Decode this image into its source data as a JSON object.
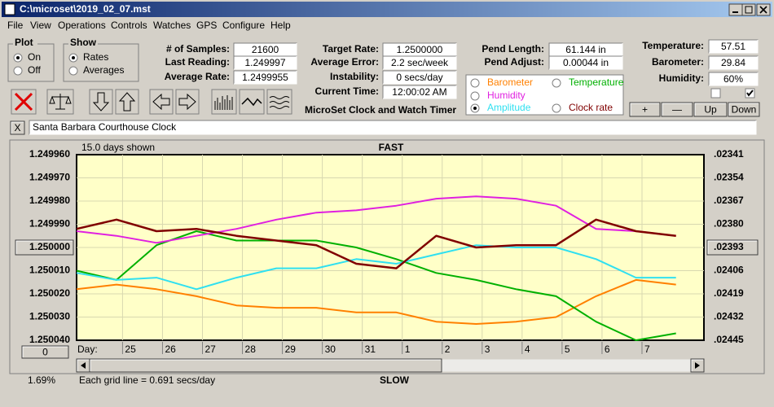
{
  "window": {
    "title": "C:\\microset\\2019_02_07.mst"
  },
  "menu": [
    "File",
    "View",
    "Operations",
    "Controls",
    "Watches",
    "GPS",
    "Configure",
    "Help"
  ],
  "plot_group": {
    "title": "Plot",
    "options": [
      "On",
      "Off"
    ],
    "selected": 0
  },
  "show_group": {
    "title": "Show",
    "options": [
      "Rates",
      "Averages"
    ],
    "selected": 0
  },
  "stats": [
    {
      "label": "# of Samples:",
      "value": "21600"
    },
    {
      "label": "Last Reading:",
      "value": "1.249997"
    },
    {
      "label": "Average Rate:",
      "value": "1.2499955"
    }
  ],
  "timing": [
    {
      "label": "Target Rate:",
      "value": "1.2500000"
    },
    {
      "label": "Average Error:",
      "value": "2.2 sec/week"
    },
    {
      "label": "Instability:",
      "value": "0 secs/day"
    },
    {
      "label": "Current Time:",
      "value": "12:00:02 AM"
    }
  ],
  "pendulum": [
    {
      "label": "Pend Length:",
      "value": "61.144 in"
    },
    {
      "label": "Pend Adjust:",
      "value": "0.00044 in"
    }
  ],
  "sensors": [
    {
      "label": "Temperature:",
      "value": "57.51"
    },
    {
      "label": "Barometer:",
      "value": "29.84"
    },
    {
      "label": "Humidity:",
      "value": "60%"
    }
  ],
  "checkboxes": [
    false,
    true
  ],
  "app_title": "MicroSet Clock and Watch Timer",
  "buttons": [
    "+",
    "—",
    "Up",
    "Down"
  ],
  "close_button": "X",
  "clock_name": "Santa Barbara Courthouse Clock",
  "offset_button": "0",
  "status": "1.69%",
  "chart_data": {
    "type": "line",
    "days_shown": "15.0 days shown",
    "top_label": "FAST",
    "bottom_label": "SLOW",
    "x_label": "Day:",
    "footnote": "Each grid line = 0.691 secs/day",
    "selected_series": 3,
    "y_inverted": true,
    "grid": true,
    "xlim": [
      -1.15,
      14.55
    ],
    "xticks": [
      {
        "value": 0,
        "label": "25"
      },
      {
        "value": 1,
        "label": "26"
      },
      {
        "value": 2,
        "label": "27"
      },
      {
        "value": 3,
        "label": "28"
      },
      {
        "value": 4,
        "label": "29"
      },
      {
        "value": 5,
        "label": "30"
      },
      {
        "value": 6,
        "label": "31"
      },
      {
        "value": 7,
        "label": "1"
      },
      {
        "value": 8,
        "label": "2"
      },
      {
        "value": 9,
        "label": "3"
      },
      {
        "value": 10,
        "label": "4"
      },
      {
        "value": 11,
        "label": "5"
      },
      {
        "value": 12,
        "label": "6"
      },
      {
        "value": 13,
        "label": "7"
      }
    ],
    "ylim": [
      1.24996,
      1.25004
    ],
    "yticks": [
      {
        "value": 1.24996,
        "label": "1.249960"
      },
      {
        "value": 1.24997,
        "label": "1.249970"
      },
      {
        "value": 1.24998,
        "label": "1.249980"
      },
      {
        "value": 1.24999,
        "label": "1.249990"
      },
      {
        "value": 1.25,
        "label": "1.250000"
      },
      {
        "value": 1.25001,
        "label": "1.250010"
      },
      {
        "value": 1.25002,
        "label": "1.250020"
      },
      {
        "value": 1.25003,
        "label": "1.250030"
      },
      {
        "value": 1.25004,
        "label": "1.250040"
      }
    ],
    "y2lim": [
      0.02341,
      0.02445
    ],
    "y2ticks": [
      {
        "value": 0.02341,
        "label": ".02341"
      },
      {
        "value": 0.02354,
        "label": ".02354"
      },
      {
        "value": 0.02367,
        "label": ".02367"
      },
      {
        "value": 0.0238,
        "label": ".02380"
      },
      {
        "value": 0.02393,
        "label": ".02393"
      },
      {
        "value": 0.02406,
        "label": ".02406"
      },
      {
        "value": 0.02419,
        "label": ".02419"
      },
      {
        "value": 0.02432,
        "label": ".02432"
      },
      {
        "value": 0.02445,
        "label": ".02445"
      }
    ],
    "x": [
      -1.15,
      -0.15,
      0.85,
      1.85,
      2.85,
      3.85,
      4.85,
      5.85,
      6.85,
      7.85,
      8.85,
      9.85,
      10.85,
      11.85,
      12.85,
      13.85
    ],
    "series": [
      {
        "name": "Barometer",
        "color": "#ff8000",
        "values": [
          1.250018,
          1.250016,
          1.250018,
          1.250021,
          1.250025,
          1.250026,
          1.250026,
          1.250028,
          1.250028,
          1.250032,
          1.250033,
          1.250032,
          1.25003,
          1.250021,
          1.250014,
          1.250016
        ]
      },
      {
        "name": "Temperature",
        "color": "#00b000",
        "values": [
          1.25001,
          1.250014,
          1.249999,
          1.249993,
          1.249997,
          1.249997,
          1.249997,
          1.25,
          1.250005,
          1.250011,
          1.250014,
          1.250018,
          1.250021,
          1.250032,
          1.25004,
          1.250037
        ]
      },
      {
        "name": "Humidity",
        "color": "#e020e0",
        "values": [
          1.249993,
          1.249995,
          1.249998,
          1.249995,
          1.249992,
          1.249988,
          1.249985,
          1.249984,
          1.249982,
          1.249979,
          1.249978,
          1.249979,
          1.249982,
          1.249992,
          1.249993,
          1.249995
        ]
      },
      {
        "name": "Amplitude",
        "color": "#30e0f0",
        "values": [
          1.250011,
          1.250014,
          1.250013,
          1.250018,
          1.250013,
          1.250009,
          1.250009,
          1.250005,
          1.250007,
          1.250003,
          1.249999,
          1.25,
          1.25,
          1.250005,
          1.250013,
          1.250013
        ]
      },
      {
        "name": "Clock rate",
        "color": "#800000",
        "values": [
          1.249992,
          1.249988,
          1.249993,
          1.249992,
          1.249995,
          1.249997,
          1.249999,
          1.250007,
          1.250009,
          1.249995,
          1.25,
          1.249999,
          1.249999,
          1.249988,
          1.249993,
          1.249995
        ]
      }
    ]
  }
}
